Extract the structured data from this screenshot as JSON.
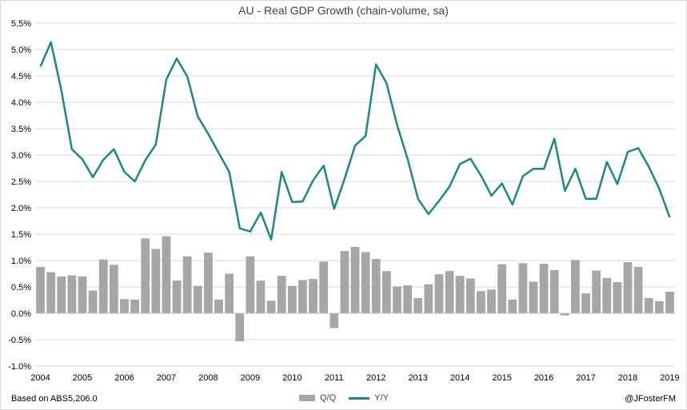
{
  "colors": {
    "bar": "#a6a6a6",
    "line": "#1a8a80",
    "grid": "#d9d9d9",
    "zero": "#bfbfbf"
  },
  "footer": {
    "source": "Based on ABS5,206.0",
    "credit": "@JFosterFM"
  },
  "chart_data": {
    "type": "bar",
    "title": "AU - Real GDP Growth (chain-volume, sa)",
    "xlabel": "",
    "ylabel": "",
    "ylim": [
      -1.0,
      5.5
    ],
    "yticks": [
      "-1.0%",
      "-0.5%",
      "0.0%",
      "0.5%",
      "1.0%",
      "1.5%",
      "2.0%",
      "2.5%",
      "3.0%",
      "3.5%",
      "4.0%",
      "4.5%",
      "5.0%",
      "5.5%"
    ],
    "xticks": [
      "2004",
      "2005",
      "2006",
      "2007",
      "2008",
      "2009",
      "2010",
      "2011",
      "2012",
      "2013",
      "2014",
      "2015",
      "2016",
      "2017",
      "2018",
      "2019"
    ],
    "grid": true,
    "legend_position": "bottom-center",
    "categories": [
      "Q1 2004",
      "Q2 2004",
      "Q3 2004",
      "Q4 2004",
      "Q1 2005",
      "Q2 2005",
      "Q3 2005",
      "Q4 2005",
      "Q1 2006",
      "Q2 2006",
      "Q3 2006",
      "Q4 2006",
      "Q1 2007",
      "Q2 2007",
      "Q3 2007",
      "Q4 2007",
      "Q1 2008",
      "Q2 2008",
      "Q3 2008",
      "Q4 2008",
      "Q1 2009",
      "Q2 2009",
      "Q3 2009",
      "Q4 2009",
      "Q1 2010",
      "Q2 2010",
      "Q3 2010",
      "Q4 2010",
      "Q1 2011",
      "Q2 2011",
      "Q3 2011",
      "Q4 2011",
      "Q1 2012",
      "Q2 2012",
      "Q3 2012",
      "Q4 2012",
      "Q1 2013",
      "Q2 2013",
      "Q3 2013",
      "Q4 2013",
      "Q1 2014",
      "Q2 2014",
      "Q3 2014",
      "Q4 2014",
      "Q1 2015",
      "Q2 2015",
      "Q3 2015",
      "Q4 2015",
      "Q1 2016",
      "Q2 2016",
      "Q3 2016",
      "Q4 2016",
      "Q1 2017",
      "Q2 2017",
      "Q3 2017",
      "Q4 2017",
      "Q1 2018",
      "Q2 2018",
      "Q3 2018",
      "Q4 2018",
      "Q1 2019"
    ],
    "series": [
      {
        "name": "Q/Q",
        "kind": "bar",
        "values": [
          0.88,
          0.78,
          0.7,
          0.72,
          0.7,
          0.43,
          1.02,
          0.92,
          0.27,
          0.26,
          1.42,
          1.22,
          1.46,
          0.62,
          1.08,
          0.52,
          1.15,
          0.26,
          0.75,
          -0.53,
          1.08,
          0.62,
          0.24,
          0.71,
          0.52,
          0.63,
          0.65,
          0.98,
          -0.28,
          1.18,
          1.26,
          1.16,
          1.03,
          0.8,
          0.51,
          0.53,
          0.29,
          0.55,
          0.74,
          0.8,
          0.71,
          0.66,
          0.42,
          0.45,
          0.93,
          0.26,
          0.95,
          0.6,
          0.94,
          0.82,
          -0.04,
          1.01,
          0.38,
          0.81,
          0.67,
          0.59,
          0.97,
          0.88,
          0.29,
          0.23,
          0.41
        ]
      },
      {
        "name": "Y/Y",
        "kind": "line",
        "values": [
          4.68,
          5.14,
          4.22,
          3.11,
          2.92,
          2.58,
          2.91,
          3.11,
          2.68,
          2.5,
          2.9,
          3.2,
          4.43,
          4.83,
          4.49,
          3.73,
          3.4,
          3.04,
          2.68,
          1.61,
          1.55,
          1.91,
          1.4,
          2.68,
          2.11,
          2.12,
          2.52,
          2.8,
          1.98,
          2.55,
          3.18,
          3.36,
          4.72,
          4.36,
          3.57,
          2.93,
          2.17,
          1.88,
          2.13,
          2.4,
          2.83,
          2.93,
          2.61,
          2.23,
          2.46,
          2.06,
          2.6,
          2.74,
          2.74,
          3.31,
          2.32,
          2.74,
          2.17,
          2.17,
          2.87,
          2.45,
          3.06,
          3.13,
          2.78,
          2.36,
          1.82
        ]
      }
    ]
  }
}
